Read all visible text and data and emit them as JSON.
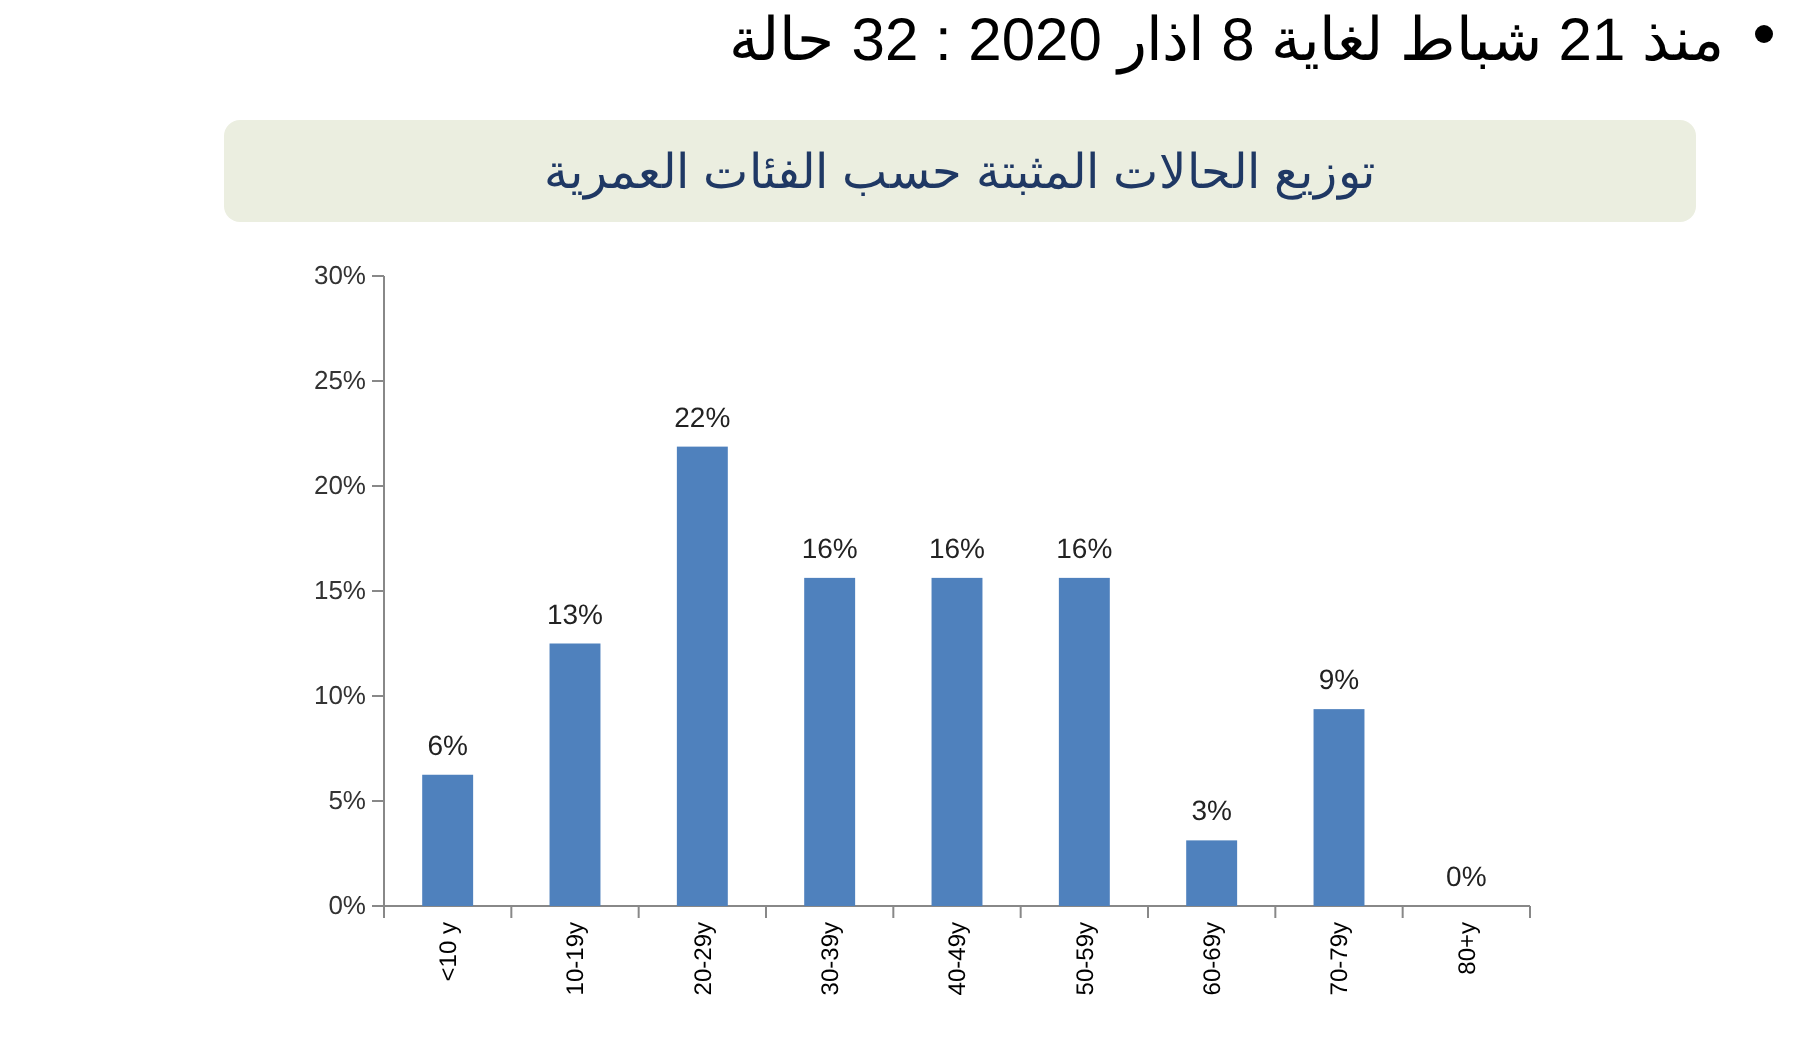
{
  "chart_data": {
    "type": "bar",
    "title": "منذ 21 شباط لغاية 8 اذار 2020 : 32 حالة",
    "subtitle": "توزيع الحالات المثبتة حسب الفئات العمرية",
    "categories": [
      "<10 y",
      "10-19y",
      "20-29y",
      "30-39y",
      "40-49y",
      "50-59y",
      "60-69y",
      "70-79y",
      "80+y"
    ],
    "values": [
      6.25,
      12.5,
      21.875,
      15.625,
      15.625,
      15.625,
      3.125,
      9.375,
      0
    ],
    "value_labels": [
      "6%",
      "13%",
      "22%",
      "16%",
      "16%",
      "16%",
      "3%",
      "9%",
      "0%"
    ],
    "color": "#4f81bd",
    "ylim": [
      0,
      30
    ],
    "yticks": [
      {
        "value": 0,
        "label": "0%"
      },
      {
        "value": 5,
        "label": "5%"
      },
      {
        "value": 10,
        "label": "10%"
      },
      {
        "value": 15,
        "label": "15%"
      },
      {
        "value": 20,
        "label": "20%"
      },
      {
        "value": 25,
        "label": "25%"
      },
      {
        "value": 30,
        "label": "30%"
      }
    ],
    "grid": false
  }
}
